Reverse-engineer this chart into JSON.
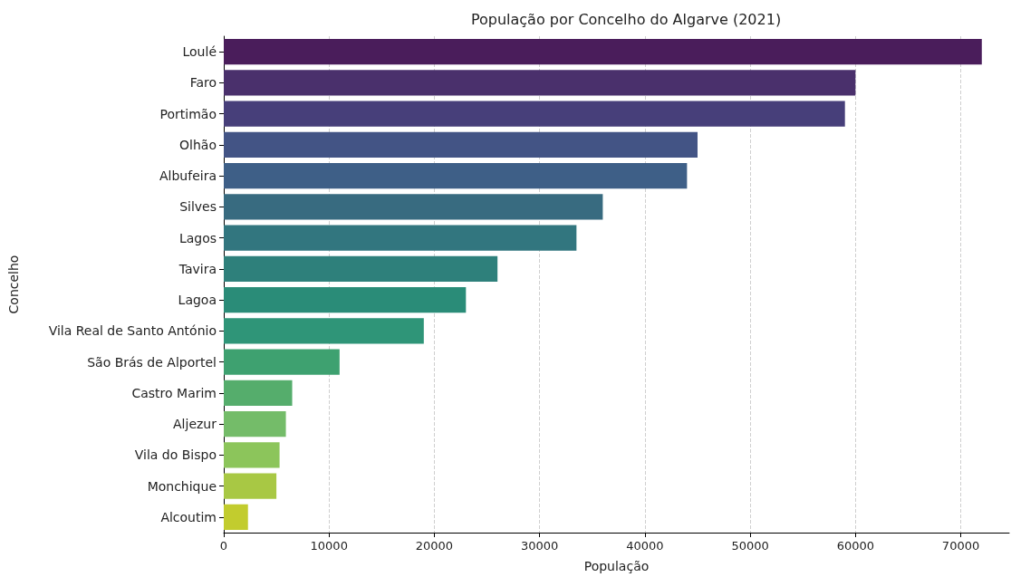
{
  "chart_data": {
    "type": "bar",
    "orientation": "horizontal",
    "title": "População por Concelho do Algarve (2021)",
    "xlabel": "População",
    "ylabel": "Concelho",
    "categories": [
      "Loulé",
      "Faro",
      "Portimão",
      "Olhão",
      "Albufeira",
      "Silves",
      "Lagos",
      "Tavira",
      "Lagoa",
      "Vila Real de Santo António",
      "São Brás de Alportel",
      "Castro Marim",
      "Aljezur",
      "Vila do Bispo",
      "Monchique",
      "Alcoutim"
    ],
    "values": [
      72000,
      60000,
      59000,
      45000,
      44000,
      36000,
      33500,
      26000,
      23000,
      19000,
      11000,
      6500,
      5900,
      5300,
      5000,
      2300
    ],
    "colors": [
      "#4a1d5b",
      "#4a306c",
      "#473f7a",
      "#435485",
      "#3e5f87",
      "#386b80",
      "#32767f",
      "#2e807b",
      "#2a8c78",
      "#2f9578",
      "#3ea170",
      "#55ad6c",
      "#74bc69",
      "#8cc55b",
      "#a8c844",
      "#c2cc2e"
    ],
    "xlim": [
      0,
      74600
    ],
    "xticks": [
      0,
      10000,
      20000,
      30000,
      40000,
      50000,
      60000,
      70000
    ],
    "grid": "x"
  }
}
